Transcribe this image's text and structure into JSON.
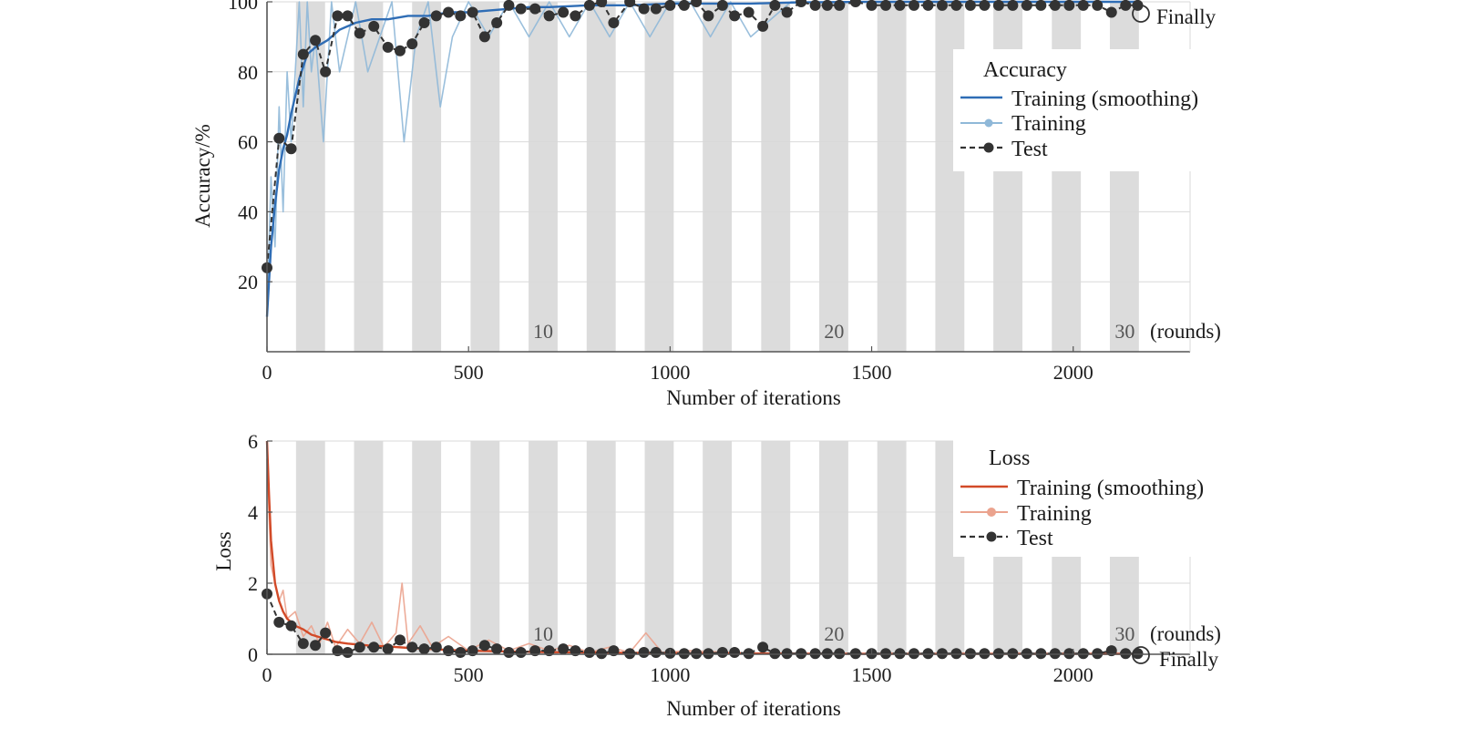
{
  "colors": {
    "acc_smooth": "#2f6db5",
    "acc_raw": "#8fb8d8",
    "loss_smooth": "#d24a28",
    "loss_raw": "#eba38e",
    "test": "#333333",
    "band": "#dcdcdc",
    "grid": "#d9d9d9",
    "axis": "#555555"
  },
  "chart_data": [
    {
      "type": "line",
      "xlabel": "Number of iterations",
      "ylabel": "Accuracy/%",
      "xlim": [
        0,
        2290
      ],
      "ylim": [
        0,
        100
      ],
      "xticks": [
        0,
        500,
        1000,
        1500,
        2000
      ],
      "yticks": [
        20,
        40,
        60,
        80,
        100
      ],
      "grid": true,
      "legend": {
        "title": "Accuracy",
        "position": "top-right",
        "labels": [
          "Training (smoothing)",
          "Training",
          "Test"
        ]
      },
      "round_labels": [
        "10",
        "20",
        "30"
      ],
      "round_label_iterations": [
        685,
        1407,
        2128
      ],
      "rounds_unit": "(rounds)",
      "final_label": "Finally",
      "round_band_starts": [
        72,
        216,
        360,
        505,
        649,
        793,
        937,
        1081,
        1226,
        1370,
        1514,
        1658,
        1802,
        1947,
        2091
      ],
      "round_band_width": 72,
      "series": [
        {
          "name": "Training (smoothing)",
          "x": [
            0,
            10,
            20,
            30,
            40,
            50,
            60,
            80,
            100,
            120,
            150,
            180,
            220,
            260,
            300,
            350,
            400,
            450,
            500,
            550,
            600,
            650,
            700,
            800,
            900,
            1000,
            1100,
            1200,
            1300,
            1500,
            1800,
            2160
          ],
          "y": [
            10,
            30,
            42,
            52,
            58,
            62,
            68,
            78,
            85,
            87,
            89,
            92,
            94,
            95,
            95,
            96,
            96,
            97,
            97,
            97.5,
            98,
            98.5,
            98.5,
            99,
            99,
            99.5,
            99.5,
            99.5,
            99.8,
            100,
            100,
            100
          ]
        },
        {
          "name": "Training",
          "x": [
            0,
            10,
            20,
            30,
            40,
            50,
            60,
            70,
            80,
            90,
            100,
            110,
            120,
            140,
            160,
            180,
            200,
            220,
            250,
            280,
            310,
            340,
            370,
            400,
            430,
            460,
            500,
            550,
            600,
            650,
            700,
            750,
            800,
            850,
            900,
            950,
            1000,
            1050,
            1100,
            1150,
            1200,
            1300,
            1500,
            2160
          ],
          "y": [
            10,
            50,
            30,
            70,
            40,
            80,
            60,
            80,
            100,
            70,
            100,
            80,
            90,
            60,
            100,
            80,
            90,
            100,
            80,
            90,
            100,
            60,
            90,
            100,
            70,
            90,
            100,
            90,
            100,
            90,
            100,
            90,
            100,
            90,
            100,
            90,
            100,
            100,
            90,
            100,
            90,
            100,
            100,
            100
          ]
        },
        {
          "name": "Test",
          "x": [
            0,
            30,
            60,
            90,
            120,
            145,
            175,
            200,
            230,
            265,
            300,
            330,
            360,
            390,
            420,
            450,
            480,
            510,
            540,
            570,
            600,
            630,
            665,
            700,
            735,
            765,
            800,
            830,
            860,
            900,
            935,
            965,
            1000,
            1035,
            1065,
            1095,
            1130,
            1160,
            1195,
            1230,
            1260,
            1290,
            1325,
            1360,
            1390,
            1420,
            1460,
            1500,
            1535,
            1570,
            1605,
            1640,
            1675,
            1710,
            1745,
            1780,
            1815,
            1850,
            1885,
            1920,
            1955,
            1990,
            2025,
            2060,
            2095,
            2130,
            2160
          ],
          "y": [
            24,
            61,
            58,
            85,
            89,
            80,
            96,
            96,
            91,
            93,
            87,
            86,
            88,
            94,
            96,
            97,
            96,
            97,
            90,
            94,
            99,
            98,
            98,
            96,
            97,
            96,
            99,
            100,
            94,
            100,
            98,
            98,
            99,
            99,
            100,
            96,
            99,
            96,
            97,
            93,
            99,
            97,
            100,
            99,
            99,
            99,
            100,
            99,
            99,
            99,
            99,
            99,
            99,
            99,
            99,
            99,
            99,
            99,
            99,
            99,
            99,
            99,
            99,
            99,
            97,
            99,
            99
          ]
        }
      ]
    },
    {
      "type": "line",
      "xlabel": "Number of iterations",
      "ylabel": "Loss",
      "xlim": [
        0,
        2290
      ],
      "ylim": [
        0,
        6
      ],
      "xticks": [
        0,
        500,
        1000,
        1500,
        2000
      ],
      "yticks": [
        0,
        2,
        4,
        6
      ],
      "grid": true,
      "legend": {
        "title": "Loss",
        "position": "top-right",
        "labels": [
          "Training (smoothing)",
          "Training",
          "Test"
        ]
      },
      "round_labels": [
        "10",
        "20",
        "30"
      ],
      "round_label_iterations": [
        685,
        1407,
        2128
      ],
      "rounds_unit": "(rounds)",
      "final_label": "Finally",
      "round_band_starts": [
        72,
        216,
        360,
        505,
        649,
        793,
        937,
        1081,
        1226,
        1370,
        1514,
        1658,
        1802,
        1947,
        2091
      ],
      "round_band_width": 72,
      "series": [
        {
          "name": "Training (smoothing)",
          "x": [
            0,
            5,
            10,
            20,
            30,
            40,
            50,
            70,
            90,
            110,
            140,
            170,
            200,
            250,
            300,
            350,
            400,
            450,
            500,
            600,
            700,
            800,
            900,
            1000,
            1200,
            1500,
            2160
          ],
          "y": [
            6.0,
            4.5,
            3.2,
            2.0,
            1.5,
            1.2,
            1.0,
            0.8,
            0.7,
            0.55,
            0.45,
            0.35,
            0.3,
            0.25,
            0.22,
            0.18,
            0.15,
            0.12,
            0.1,
            0.08,
            0.06,
            0.05,
            0.04,
            0.03,
            0.02,
            0.01,
            0.01
          ]
        },
        {
          "name": "Training",
          "x": [
            0,
            10,
            20,
            30,
            40,
            50,
            70,
            90,
            110,
            130,
            150,
            170,
            200,
            230,
            260,
            290,
            320,
            335,
            350,
            380,
            410,
            450,
            500,
            550,
            600,
            650,
            700,
            750,
            800,
            850,
            900,
            940,
            980,
            1050,
            1150,
            1250,
            1400,
            2160
          ],
          "y": [
            5.5,
            2.5,
            2.0,
            1.5,
            1.8,
            1.0,
            1.2,
            0.5,
            0.8,
            0.3,
            0.9,
            0.2,
            0.7,
            0.3,
            0.9,
            0.2,
            0.6,
            2.0,
            0.3,
            0.8,
            0.2,
            0.5,
            0.1,
            0.4,
            0.1,
            0.3,
            0.1,
            0.25,
            0.05,
            0.2,
            0.05,
            0.6,
            0.05,
            0.1,
            0.05,
            0.02,
            0.02,
            0.01
          ]
        },
        {
          "name": "Test",
          "x": [
            0,
            30,
            60,
            90,
            120,
            145,
            175,
            200,
            230,
            265,
            300,
            330,
            360,
            390,
            420,
            450,
            480,
            510,
            540,
            570,
            600,
            630,
            665,
            700,
            735,
            765,
            800,
            830,
            860,
            900,
            935,
            965,
            1000,
            1035,
            1065,
            1095,
            1130,
            1160,
            1195,
            1230,
            1260,
            1290,
            1325,
            1360,
            1390,
            1420,
            1460,
            1500,
            1535,
            1570,
            1605,
            1640,
            1675,
            1710,
            1745,
            1780,
            1815,
            1850,
            1885,
            1920,
            1955,
            1990,
            2025,
            2060,
            2095,
            2130,
            2160
          ],
          "y": [
            1.7,
            0.9,
            0.8,
            0.3,
            0.25,
            0.6,
            0.1,
            0.05,
            0.2,
            0.2,
            0.15,
            0.4,
            0.2,
            0.15,
            0.2,
            0.1,
            0.05,
            0.1,
            0.25,
            0.15,
            0.05,
            0.05,
            0.1,
            0.1,
            0.15,
            0.1,
            0.05,
            0.02,
            0.1,
            0.02,
            0.05,
            0.05,
            0.03,
            0.02,
            0.02,
            0.02,
            0.05,
            0.05,
            0.02,
            0.2,
            0.02,
            0.02,
            0.02,
            0.02,
            0.02,
            0.02,
            0.02,
            0.02,
            0.02,
            0.02,
            0.02,
            0.02,
            0.02,
            0.02,
            0.02,
            0.02,
            0.02,
            0.02,
            0.02,
            0.02,
            0.02,
            0.02,
            0.02,
            0.02,
            0.1,
            0.02,
            0.02
          ]
        }
      ]
    }
  ]
}
